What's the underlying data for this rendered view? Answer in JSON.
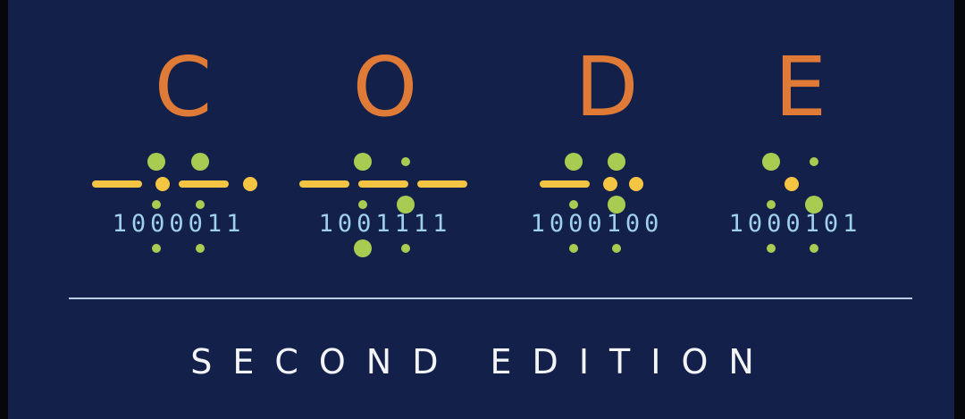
{
  "title_letters": [
    "C",
    "O",
    "D",
    "E"
  ],
  "binary_codes": [
    "1000011",
    "1001111",
    "1000100",
    "1000101"
  ],
  "subtitle": "SECOND EDITION",
  "colors": {
    "background": "#13214a",
    "letters": "#e07b37",
    "dash": "#f4c542",
    "green_dot": "#a8cc52",
    "binary_text": "#9fd0ea",
    "divider": "#b9cde6",
    "subtitle": "#f2f4f8"
  }
}
